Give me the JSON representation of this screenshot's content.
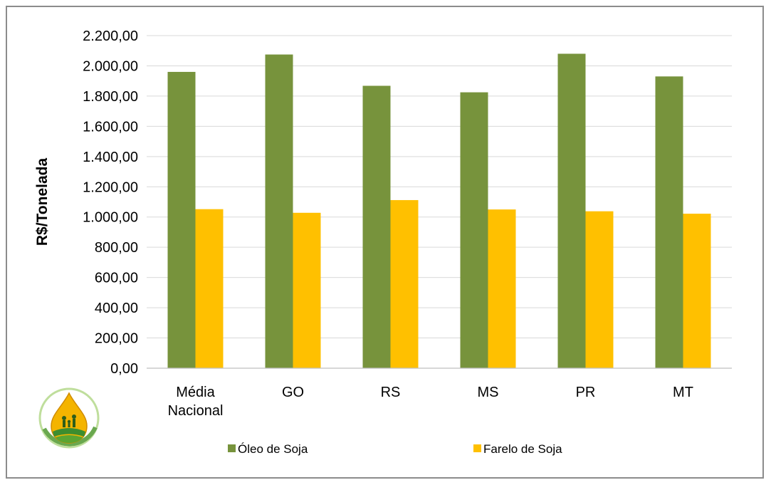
{
  "chart_data": {
    "type": "bar",
    "ylabel": "R$/Tonelada",
    "ylim": [
      0,
      2200
    ],
    "ytick_step": 200,
    "ytick_labels": [
      "0,00",
      "200,00",
      "400,00",
      "600,00",
      "800,00",
      "1.000,00",
      "1.200,00",
      "1.400,00",
      "1.600,00",
      "1.800,00",
      "2.000,00",
      "2.200,00"
    ],
    "categories": [
      [
        "Média",
        "Nacional"
      ],
      [
        "GO"
      ],
      [
        "RS"
      ],
      [
        "MS"
      ],
      [
        "PR"
      ],
      [
        "MT"
      ]
    ],
    "series": [
      {
        "name": "Óleo de Soja",
        "color": "#77933c",
        "values": [
          1960,
          2075,
          1868,
          1825,
          2080,
          1930
        ]
      },
      {
        "name": "Farelo de Soja",
        "color": "#ffc000",
        "values": [
          1052,
          1028,
          1112,
          1050,
          1038,
          1022
        ]
      }
    ],
    "grid": true,
    "legend_placement": "bottom-center"
  },
  "logo": {
    "icon": "soy-drop-logo-icon"
  }
}
